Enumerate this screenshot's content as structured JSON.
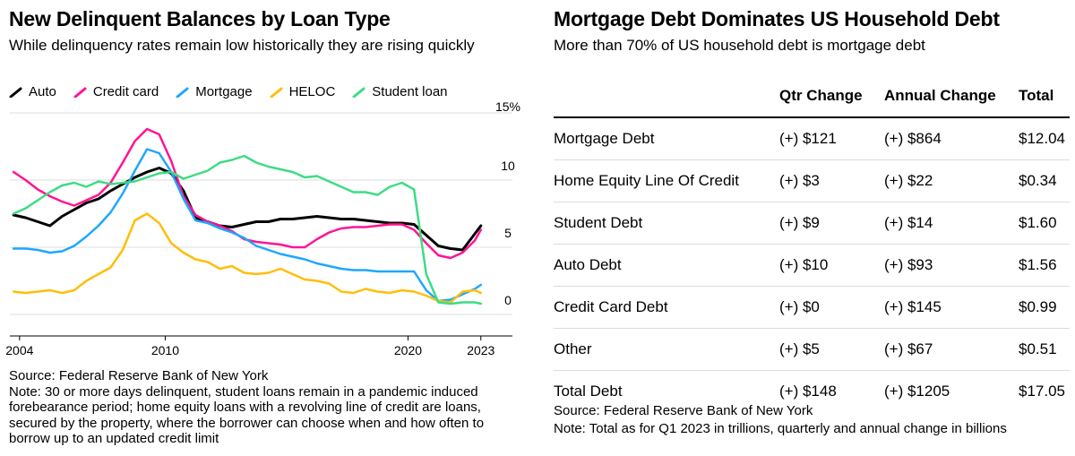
{
  "left": {
    "title": "New Delinquent Balances by Loan Type",
    "subtitle": "While delinquency rates remain low historically they are rising quickly",
    "source": "Source: Federal Reserve Bank of New York",
    "note": "Note: 30 or more days delinquent, student loans remain in a pandemic induced forebearance period; home equity loans with a revolving line of credit are loans, secured by the property, where the borrower can choose when and how often to borrow up to an updated credit limit"
  },
  "right": {
    "title": "Mortgage Debt Dominates US Household Debt",
    "subtitle": "More than 70% of US household debt is mortgage debt",
    "headers": [
      "",
      "Qtr Change",
      "Annual Change",
      "Total"
    ],
    "rows": [
      [
        "Mortgage Debt",
        "(+) $121",
        "(+) $864",
        "$12.04"
      ],
      [
        "Home Equity Line Of Credit",
        "(+) $3",
        "(+) $22",
        "$0.34"
      ],
      [
        "Student Debt",
        "(+) $9",
        "(+) $14",
        "$1.60"
      ],
      [
        "Auto Debt",
        "(+) $10",
        "(+) $93",
        "$1.56"
      ],
      [
        "Credit Card Debt",
        "(+) $0",
        "(+) $145",
        "$0.99"
      ],
      [
        "Other",
        "(+) $5",
        "(+) $67",
        "$0.51"
      ],
      [
        "Total Debt",
        "(+) $148",
        "(+) $1205",
        "$17.05"
      ]
    ],
    "source": "Source: Federal Reserve Bank of New York",
    "note": "Note: Total as for Q1 2023 in trillions, quarterly and annual change in billions"
  },
  "chart_data": {
    "type": "line",
    "title": "New Delinquent Balances by Loan Type",
    "x_ticks": [
      2004,
      2010,
      2020,
      2023
    ],
    "y_ticks": [
      0,
      5,
      10,
      15
    ],
    "y_tick_labels": [
      "0",
      "5",
      "10",
      "15%"
    ],
    "xlim": [
      2003.6,
      2024.3
    ],
    "ylim": [
      0,
      15
    ],
    "grid": true,
    "legend_position": "top-left",
    "series": [
      {
        "name": "Auto",
        "color": "#000000",
        "x": [
          2003.75,
          2004.25,
          2004.75,
          2005.25,
          2005.75,
          2006.25,
          2006.75,
          2007.25,
          2007.75,
          2008.25,
          2008.75,
          2009.25,
          2009.75,
          2010.25,
          2010.75,
          2011.25,
          2011.75,
          2012.25,
          2012.75,
          2013.25,
          2013.75,
          2014.25,
          2014.75,
          2015.25,
          2015.75,
          2016.25,
          2016.75,
          2017.25,
          2017.75,
          2018.25,
          2018.75,
          2019.25,
          2019.75,
          2020.25,
          2020.75,
          2021.25,
          2021.75,
          2022.25,
          2022.75,
          2023.0
        ],
        "y": [
          7.4,
          7.2,
          6.9,
          6.6,
          7.3,
          7.8,
          8.3,
          8.6,
          9.2,
          9.7,
          10.2,
          10.6,
          10.9,
          10.5,
          9.2,
          7.2,
          6.9,
          6.6,
          6.5,
          6.7,
          6.9,
          6.9,
          7.1,
          7.1,
          7.2,
          7.3,
          7.2,
          7.1,
          7.1,
          7.0,
          6.9,
          6.8,
          6.8,
          6.7,
          5.9,
          5.1,
          4.9,
          4.8,
          6.0,
          6.6
        ]
      },
      {
        "name": "Credit card",
        "color": "#ff1493",
        "x": [
          2003.75,
          2004.25,
          2004.75,
          2005.25,
          2005.75,
          2006.25,
          2006.75,
          2007.25,
          2007.75,
          2008.25,
          2008.75,
          2009.25,
          2009.75,
          2010.25,
          2010.75,
          2011.25,
          2011.75,
          2012.25,
          2012.75,
          2013.25,
          2013.75,
          2014.25,
          2014.75,
          2015.25,
          2015.75,
          2016.25,
          2016.75,
          2017.25,
          2017.75,
          2018.25,
          2018.75,
          2019.25,
          2019.75,
          2020.25,
          2020.75,
          2021.25,
          2021.75,
          2022.25,
          2022.75,
          2023.0
        ],
        "y": [
          10.6,
          10.0,
          9.3,
          8.8,
          8.4,
          8.1,
          8.5,
          8.9,
          9.8,
          11.3,
          12.9,
          13.8,
          13.4,
          11.4,
          8.8,
          7.4,
          6.9,
          6.6,
          6.2,
          5.6,
          5.4,
          5.3,
          5.2,
          5.0,
          5.0,
          5.6,
          6.1,
          6.4,
          6.5,
          6.5,
          6.6,
          6.7,
          6.7,
          6.3,
          5.3,
          4.4,
          4.2,
          4.6,
          5.5,
          6.3
        ]
      },
      {
        "name": "Mortgage",
        "color": "#1ea7ff",
        "x": [
          2003.75,
          2004.25,
          2004.75,
          2005.25,
          2005.75,
          2006.25,
          2006.75,
          2007.25,
          2007.75,
          2008.25,
          2008.75,
          2009.25,
          2009.75,
          2010.25,
          2010.75,
          2011.25,
          2011.75,
          2012.25,
          2012.75,
          2013.25,
          2013.75,
          2014.25,
          2014.75,
          2015.25,
          2015.75,
          2016.25,
          2016.75,
          2017.25,
          2017.75,
          2018.25,
          2018.75,
          2019.25,
          2019.75,
          2020.25,
          2020.75,
          2021.25,
          2021.75,
          2022.25,
          2022.75,
          2023.0
        ],
        "y": [
          4.9,
          4.9,
          4.8,
          4.6,
          4.7,
          5.1,
          5.8,
          6.6,
          7.6,
          9.0,
          10.7,
          12.3,
          12.0,
          10.6,
          8.6,
          7.0,
          6.8,
          6.4,
          6.1,
          5.7,
          5.1,
          4.8,
          4.5,
          4.3,
          4.1,
          3.8,
          3.6,
          3.4,
          3.3,
          3.3,
          3.2,
          3.2,
          3.2,
          3.2,
          1.8,
          1.0,
          1.1,
          1.5,
          1.9,
          2.2
        ]
      },
      {
        "name": "HELOC",
        "color": "#ffbe0b",
        "x": [
          2003.75,
          2004.25,
          2004.75,
          2005.25,
          2005.75,
          2006.25,
          2006.75,
          2007.25,
          2007.75,
          2008.25,
          2008.75,
          2009.25,
          2009.75,
          2010.25,
          2010.75,
          2011.25,
          2011.75,
          2012.25,
          2012.75,
          2013.25,
          2013.75,
          2014.25,
          2014.75,
          2015.25,
          2015.75,
          2016.25,
          2016.75,
          2017.25,
          2017.75,
          2018.25,
          2018.75,
          2019.25,
          2019.75,
          2020.25,
          2020.75,
          2021.25,
          2021.75,
          2022.25,
          2022.75,
          2023.0
        ],
        "y": [
          1.7,
          1.6,
          1.7,
          1.8,
          1.6,
          1.8,
          2.5,
          3.0,
          3.5,
          4.8,
          7.0,
          7.5,
          6.8,
          5.3,
          4.6,
          4.1,
          3.9,
          3.4,
          3.6,
          3.1,
          3.0,
          3.1,
          3.4,
          3.0,
          2.6,
          2.5,
          2.3,
          1.7,
          1.6,
          1.9,
          1.7,
          1.6,
          1.8,
          1.7,
          1.4,
          1.0,
          0.9,
          1.7,
          1.8,
          1.6
        ]
      },
      {
        "name": "Student loan",
        "color": "#3ddc84",
        "x": [
          2003.75,
          2004.25,
          2004.75,
          2005.25,
          2005.75,
          2006.25,
          2006.75,
          2007.25,
          2007.75,
          2008.25,
          2008.75,
          2009.25,
          2009.75,
          2010.25,
          2010.75,
          2011.25,
          2011.75,
          2012.25,
          2012.75,
          2013.25,
          2013.75,
          2014.25,
          2014.75,
          2015.25,
          2015.75,
          2016.25,
          2016.75,
          2017.25,
          2017.75,
          2018.25,
          2018.75,
          2019.25,
          2019.75,
          2020.25,
          2020.75,
          2021.25,
          2021.75,
          2022.25,
          2022.75,
          2023.0
        ],
        "y": [
          7.5,
          7.9,
          8.5,
          9.1,
          9.6,
          9.8,
          9.5,
          9.9,
          9.7,
          9.8,
          9.9,
          10.2,
          10.5,
          10.6,
          10.1,
          10.4,
          10.7,
          11.3,
          11.5,
          11.8,
          11.3,
          11.0,
          10.8,
          10.6,
          10.2,
          10.3,
          9.9,
          9.5,
          9.1,
          9.1,
          8.9,
          9.5,
          9.8,
          9.3,
          3.0,
          0.9,
          0.8,
          0.9,
          0.9,
          0.8
        ]
      }
    ]
  }
}
